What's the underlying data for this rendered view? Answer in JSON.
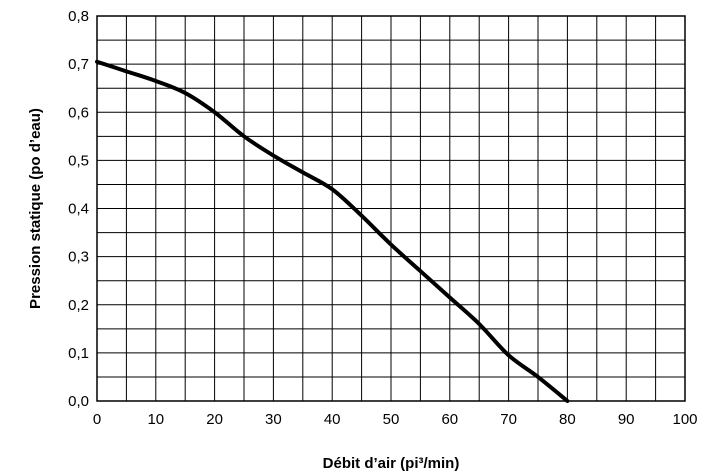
{
  "chart_data": {
    "type": "line",
    "title": "",
    "xlabel": "Débit d’air (pi³/min)",
    "ylabel": "Pression statique  (po d’eau)",
    "xlim": [
      0,
      100
    ],
    "ylim": [
      0,
      0.8
    ],
    "x_ticks": [
      0,
      10,
      20,
      30,
      40,
      50,
      60,
      70,
      80,
      90,
      100
    ],
    "y_ticks": [
      0,
      0.1,
      0.2,
      0.3,
      0.4,
      0.5,
      0.6,
      0.7,
      0.8
    ],
    "x_tick_labels": [
      "0",
      "10",
      "20",
      "30",
      "40",
      "50",
      "60",
      "70",
      "80",
      "90",
      "100"
    ],
    "y_tick_labels": [
      "0,0",
      "0,1",
      "0,2",
      "0,3",
      "0,4",
      "0,5",
      "0,6",
      "0,7",
      "0,8"
    ],
    "grid": {
      "x_step": 5,
      "y_step": 0.05,
      "visible": true
    },
    "line_color": "#000000",
    "series": [
      {
        "x": [
          0,
          5,
          10,
          15,
          20,
          25,
          30,
          35,
          40,
          45,
          50,
          55,
          60,
          65,
          70,
          75,
          80
        ],
        "y": [
          0.705,
          0.685,
          0.665,
          0.64,
          0.6,
          0.55,
          0.51,
          0.475,
          0.44,
          0.385,
          0.325,
          0.27,
          0.215,
          0.16,
          0.095,
          0.05,
          0.0
        ]
      }
    ]
  }
}
